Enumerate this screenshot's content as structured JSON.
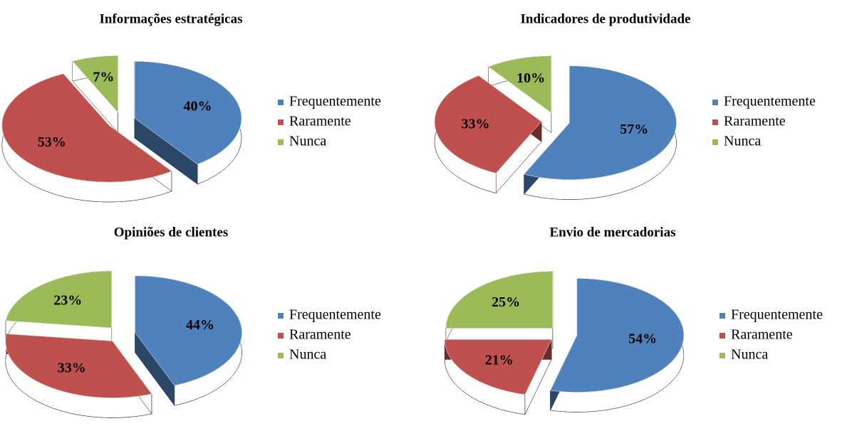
{
  "chart_data": [
    {
      "type": "pie",
      "title": "Informações estratégicas",
      "categories": [
        "Frequentemente",
        "Raramente",
        "Nunca"
      ],
      "values": [
        40,
        53,
        7
      ],
      "value_labels": [
        "40%",
        "53%",
        "7%"
      ],
      "colors": [
        "#4f81bd",
        "#c0504d",
        "#9bbb59"
      ],
      "legend": "right"
    },
    {
      "type": "pie",
      "title": "Indicadores de produtividade",
      "categories": [
        "Frequentemente",
        "Raramente",
        "Nunca"
      ],
      "values": [
        57,
        33,
        10
      ],
      "value_labels": [
        "57%",
        "33%",
        "10%"
      ],
      "colors": [
        "#4f81bd",
        "#c0504d",
        "#9bbb59"
      ],
      "legend": "right"
    },
    {
      "type": "pie",
      "title": "Opiniões de clientes",
      "categories": [
        "Frequentemente",
        "Raramente",
        "Nunca"
      ],
      "values": [
        44,
        33,
        23
      ],
      "value_labels": [
        "44%",
        "33%",
        "23%"
      ],
      "colors": [
        "#4f81bd",
        "#c0504d",
        "#9bbb59"
      ],
      "legend": "right"
    },
    {
      "type": "pie",
      "title": "Envio de mercadorias",
      "categories": [
        "Frequentemente",
        "Raramente",
        "Nunca"
      ],
      "values": [
        54,
        21,
        25
      ],
      "value_labels": [
        "54%",
        "21%",
        "25%"
      ],
      "colors": [
        "#4f81bd",
        "#c0504d",
        "#9bbb59"
      ],
      "legend": "right"
    }
  ]
}
